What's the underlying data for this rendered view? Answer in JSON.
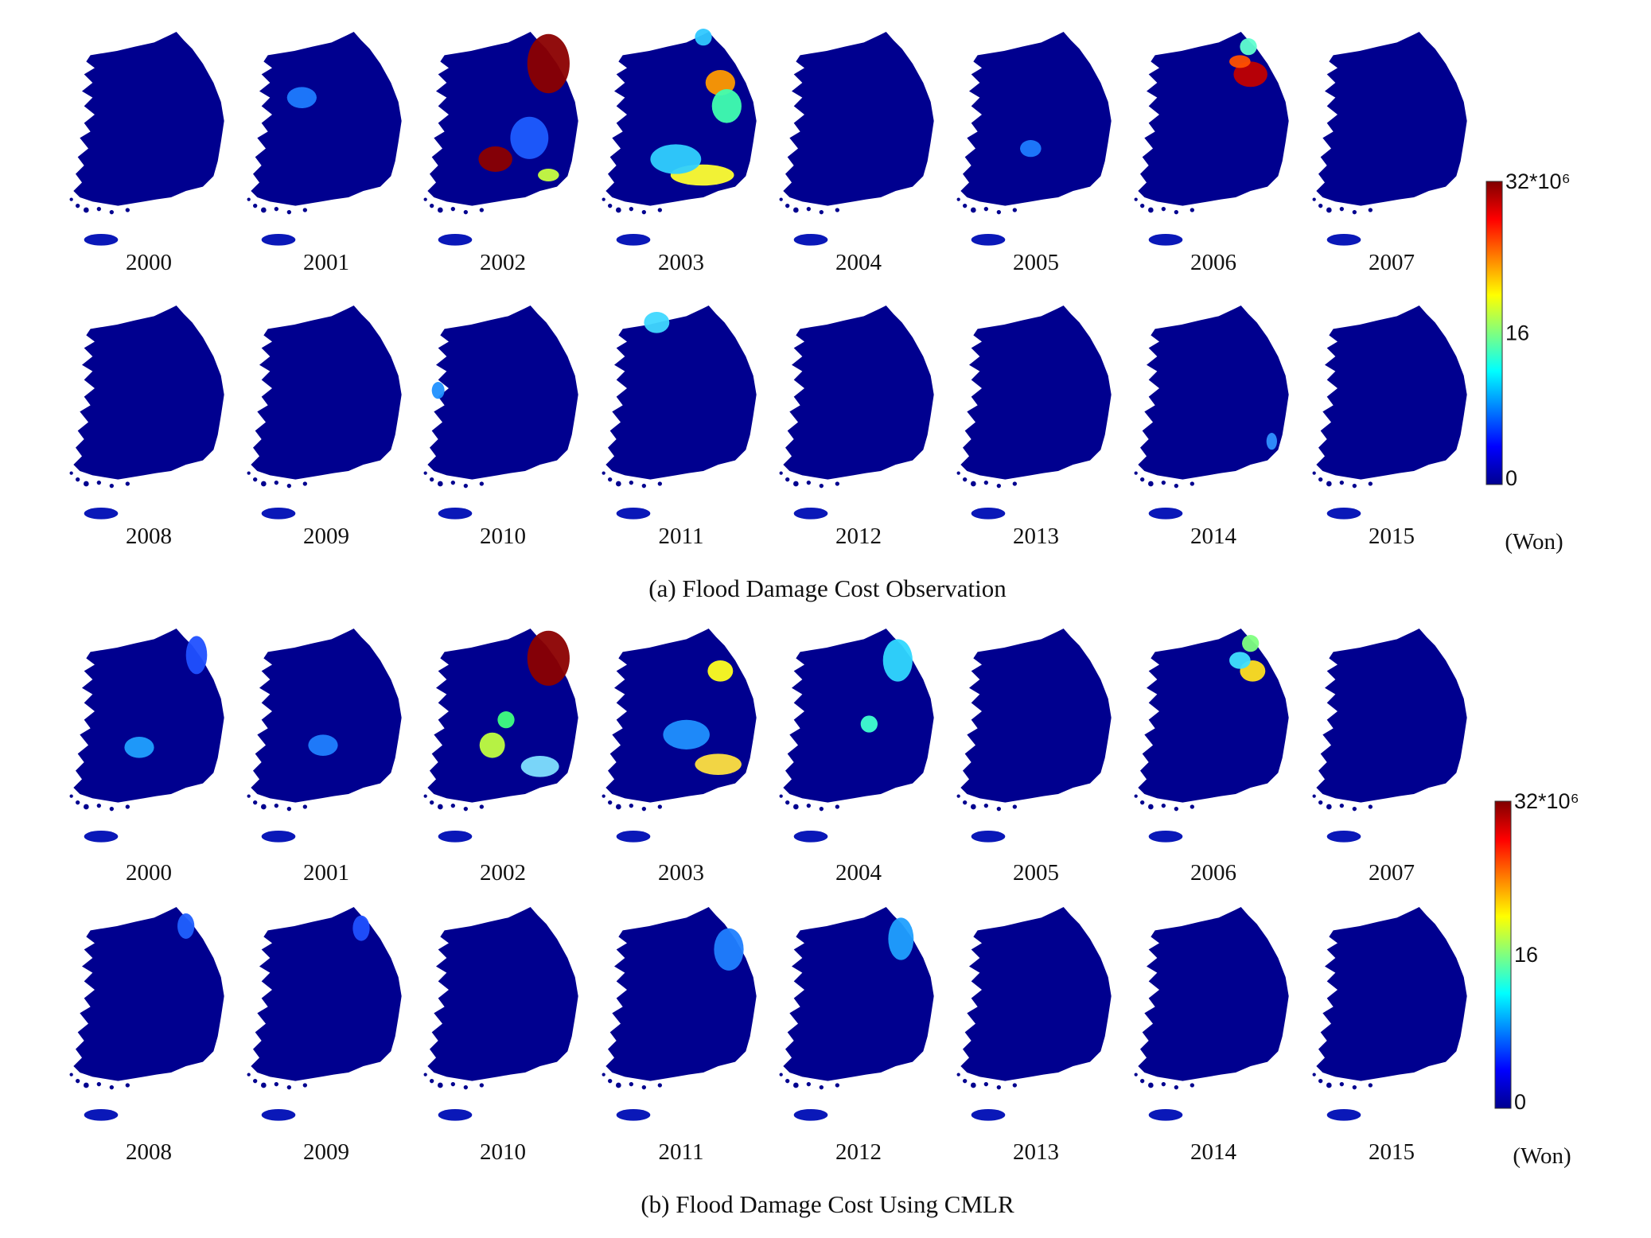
{
  "panels": [
    {
      "years": [
        "2000",
        "2001",
        "2002",
        "2003",
        "2004",
        "2005",
        "2006",
        "2007",
        "2008",
        "2009",
        "2010",
        "2011",
        "2012",
        "2013",
        "2014",
        "2015"
      ],
      "colorbar": {
        "ticks": [
          "32*10⁶",
          "16",
          "0"
        ],
        "unit": "(Won)"
      },
      "caption": "(a) Flood Damage Cost Observation"
    },
    {
      "years": [
        "2000",
        "2001",
        "2002",
        "2003",
        "2004",
        "2005",
        "2006",
        "2007",
        "2008",
        "2009",
        "2010",
        "2011",
        "2012",
        "2013",
        "2014",
        "2015"
      ],
      "colorbar": {
        "ticks": [
          "32*10⁶",
          "16",
          "0"
        ],
        "unit": "(Won)"
      },
      "caption": "(b) Flood Damage Cost Using CMLR"
    }
  ]
}
